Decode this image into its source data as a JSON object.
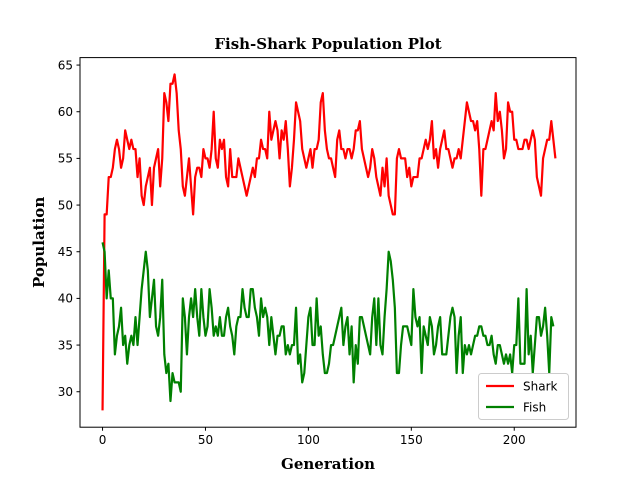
{
  "chart_data": {
    "type": "line",
    "title": "Fish-Shark Population Plot",
    "xlabel": "Generation",
    "ylabel": "Population",
    "xlim": [
      -10.95,
      230
    ],
    "ylim": [
      26.2,
      65.8
    ],
    "xticks": [
      0,
      50,
      100,
      150,
      200
    ],
    "yticks": [
      30,
      35,
      40,
      45,
      50,
      55,
      60,
      65
    ],
    "grid": false,
    "legend_position": "lower-right",
    "series": [
      {
        "name": "Shark",
        "color": "#ff0000",
        "values": [
          28,
          49,
          49,
          53,
          53,
          54,
          56,
          57,
          56,
          54,
          55,
          58,
          57,
          56,
          57,
          56,
          56,
          53,
          55,
          51,
          50,
          52,
          53,
          54,
          50,
          54,
          55,
          56,
          52,
          55,
          62,
          61,
          59,
          63,
          63,
          64,
          62,
          58,
          56,
          52,
          51,
          53,
          55,
          52,
          49,
          53,
          54,
          54,
          53,
          56,
          55,
          55,
          54,
          56,
          60,
          55,
          54,
          57,
          56,
          57,
          53,
          52,
          56,
          53,
          53,
          53,
          55,
          54,
          53,
          52,
          51,
          52,
          53,
          54,
          53,
          55,
          55,
          57,
          56,
          56,
          55,
          60,
          57,
          58,
          59,
          58,
          55,
          58,
          57,
          59,
          56,
          52,
          54,
          57,
          61,
          60,
          59,
          56,
          55,
          54,
          55,
          56,
          54,
          56,
          56,
          57,
          61,
          62,
          58,
          56,
          55,
          55,
          54,
          53,
          57,
          58,
          56,
          56,
          55,
          56,
          56,
          55,
          56,
          58,
          58,
          59,
          56,
          55,
          54,
          53,
          54,
          56,
          55,
          53,
          52,
          51,
          54,
          52,
          55,
          51,
          50,
          49,
          49,
          55,
          56,
          55,
          55,
          55,
          53,
          54,
          52,
          53,
          53,
          53,
          55,
          55,
          56,
          57,
          56,
          57,
          59,
          55,
          56,
          54,
          56,
          57,
          58,
          56,
          56,
          55,
          54,
          55,
          55,
          56,
          55,
          57,
          59,
          61,
          60,
          59,
          59,
          58,
          59,
          56,
          51,
          56,
          56,
          57,
          58,
          59,
          58,
          62,
          59,
          60,
          58,
          55,
          56,
          61,
          60,
          60,
          57,
          57,
          56,
          56,
          56,
          57,
          57,
          56,
          57,
          58,
          57,
          53,
          52,
          51,
          55,
          56,
          57,
          57,
          59,
          57,
          55
        ]
      },
      {
        "name": "Fish",
        "color": "#008000",
        "values": [
          46,
          45,
          40,
          43,
          40,
          40,
          34,
          36,
          37,
          39,
          35,
          36,
          33,
          35,
          36,
          35,
          38,
          35,
          38,
          41,
          43,
          45,
          43,
          38,
          40,
          42,
          37,
          36,
          38,
          42,
          34,
          32,
          33,
          29,
          32,
          31,
          31,
          31,
          30,
          40,
          38,
          34,
          38,
          40,
          38,
          41,
          38,
          36,
          41,
          38,
          36,
          37,
          41,
          39,
          36,
          37,
          36,
          38,
          36,
          36,
          38,
          39,
          37,
          36,
          34,
          37,
          38,
          38,
          41,
          39,
          38,
          38,
          41,
          41,
          39,
          38,
          36,
          40,
          38,
          39,
          38,
          35,
          38,
          36,
          34,
          36,
          36,
          37,
          37,
          34,
          35,
          34,
          35,
          35,
          39,
          33,
          34,
          31,
          32,
          35,
          38,
          39,
          35,
          35,
          40,
          36,
          37,
          34,
          32,
          32,
          33,
          35,
          35,
          36,
          37,
          38,
          39,
          35,
          37,
          38,
          34,
          37,
          31,
          35,
          33,
          38,
          38,
          37,
          36,
          35,
          34,
          38,
          40,
          35,
          40,
          35,
          34,
          38,
          41,
          45,
          44,
          42,
          39,
          32,
          32,
          35,
          37,
          37,
          37,
          36,
          35,
          41,
          38,
          37,
          38,
          32,
          37,
          36,
          35,
          38,
          37,
          34,
          35,
          37,
          38,
          34,
          34,
          34,
          36,
          38,
          39,
          38,
          32,
          36,
          38,
          32,
          35,
          34,
          35,
          34,
          35,
          36,
          36,
          37,
          37,
          36,
          36,
          35,
          35,
          36,
          34,
          33,
          35,
          35,
          34,
          33,
          34,
          33,
          34,
          32,
          35,
          35,
          40,
          33,
          33,
          33,
          41,
          34,
          36,
          32,
          35,
          38,
          38,
          36,
          37,
          39,
          36,
          32,
          38,
          37
        ]
      }
    ]
  }
}
